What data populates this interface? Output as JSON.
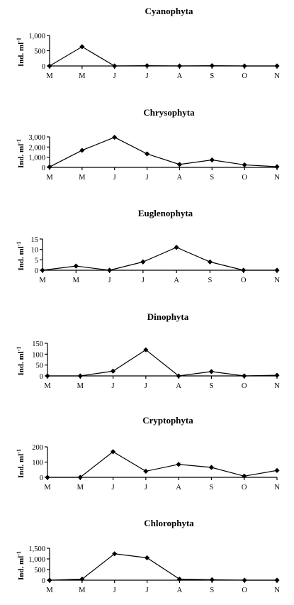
{
  "chart_data": [
    {
      "type": "line",
      "title": "Cyanophyta",
      "ylabel": "Ind. ml",
      "ylabel_superscript": "-1",
      "categories": [
        "M",
        "M",
        "J",
        "J",
        "A",
        "S",
        "O",
        "N"
      ],
      "values": [
        0,
        630,
        0,
        10,
        0,
        10,
        0,
        0
      ],
      "yticks": [
        "0",
        "500",
        "1,000"
      ],
      "ytick_values": [
        0,
        500,
        1000
      ],
      "ylim": [
        0,
        1000
      ]
    },
    {
      "type": "line",
      "title": "Chrysophyta",
      "ylabel": "Ind. ml",
      "ylabel_superscript": "-1",
      "categories": [
        "M",
        "M",
        "J",
        "J",
        "A",
        "S",
        "O",
        "N"
      ],
      "values": [
        50,
        1680,
        2960,
        1330,
        290,
        730,
        250,
        70
      ],
      "yticks": [
        "0",
        "1,000",
        "2,000",
        "3,000"
      ],
      "ytick_values": [
        0,
        1000,
        2000,
        3000
      ],
      "ylim": [
        0,
        3000
      ]
    },
    {
      "type": "line",
      "title": "Euglenophyta",
      "ylabel": "Ind. ml",
      "ylabel_superscript": "-1",
      "categories": [
        "M",
        "M",
        "J",
        "J",
        "A",
        "S",
        "O",
        "N"
      ],
      "values": [
        0,
        2,
        0,
        4,
        11,
        4,
        0,
        0
      ],
      "yticks": [
        "0",
        "5",
        "10",
        "15"
      ],
      "ytick_values": [
        0,
        5,
        10,
        15
      ],
      "ylim": [
        0,
        15
      ]
    },
    {
      "type": "line",
      "title": "Dinophyta",
      "ylabel": "Ind. ml",
      "ylabel_superscript": "-1",
      "categories": [
        "M",
        "M",
        "J",
        "J",
        "A",
        "S",
        "O",
        "N"
      ],
      "values": [
        0,
        0,
        22,
        120,
        0,
        20,
        0,
        3
      ],
      "yticks": [
        "0",
        "50",
        "100",
        "150"
      ],
      "ytick_values": [
        0,
        50,
        100,
        150
      ],
      "ylim": [
        0,
        150
      ]
    },
    {
      "type": "line",
      "title": "Cryptophyta",
      "ylabel": "Ind. ml",
      "ylabel_superscript": "-1",
      "categories": [
        "M",
        "M",
        "J",
        "J",
        "A",
        "S",
        "O",
        "N"
      ],
      "values": [
        0,
        0,
        168,
        40,
        85,
        65,
        8,
        45
      ],
      "yticks": [
        "0",
        "100",
        "200"
      ],
      "ytick_values": [
        0,
        100,
        200
      ],
      "ylim": [
        0,
        200
      ]
    },
    {
      "type": "line",
      "title": "Chlorophyta",
      "ylabel": "Ind. ml",
      "ylabel_superscript": "-1",
      "categories": [
        "M",
        "M",
        "J",
        "J",
        "A",
        "S",
        "O",
        "N"
      ],
      "values": [
        0,
        50,
        1240,
        1050,
        50,
        20,
        0,
        0
      ],
      "yticks": [
        "0",
        "500",
        "1,000",
        "1,500"
      ],
      "ytick_values": [
        0,
        500,
        1000,
        1500
      ],
      "ylim": [
        0,
        1500
      ]
    }
  ]
}
